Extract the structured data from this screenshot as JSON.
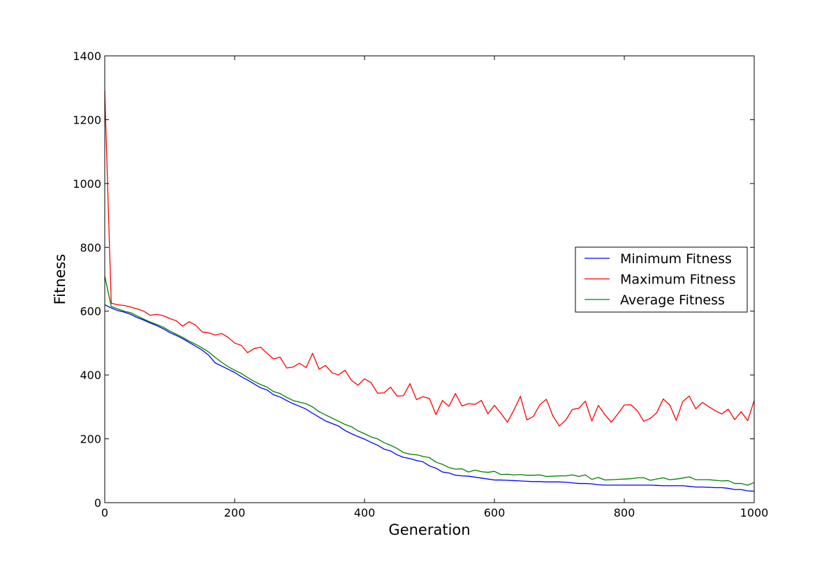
{
  "chart_data": {
    "type": "line",
    "title": "",
    "xlabel": "Generation",
    "ylabel": "Fitness",
    "xlim": [
      0,
      1000
    ],
    "ylim": [
      0,
      1400
    ],
    "xticks": [
      0,
      200,
      400,
      600,
      800,
      1000
    ],
    "yticks": [
      0,
      200,
      400,
      600,
      800,
      1000,
      1200,
      1400
    ],
    "grid": false,
    "legend_position": "center-right",
    "series": [
      {
        "name": "Minimum Fitness",
        "color": "#0000ff",
        "x": [
          0,
          10,
          20,
          30,
          40,
          50,
          60,
          70,
          80,
          90,
          100,
          110,
          120,
          130,
          140,
          150,
          160,
          170,
          180,
          190,
          200,
          210,
          220,
          230,
          240,
          250,
          260,
          270,
          280,
          290,
          300,
          310,
          320,
          330,
          340,
          350,
          360,
          370,
          380,
          390,
          400,
          410,
          420,
          430,
          440,
          450,
          460,
          470,
          480,
          490,
          500,
          510,
          520,
          530,
          540,
          550,
          560,
          570,
          580,
          590,
          600,
          610,
          620,
          630,
          640,
          650,
          660,
          670,
          680,
          690,
          700,
          710,
          720,
          730,
          740,
          750,
          760,
          770,
          780,
          790,
          800,
          810,
          820,
          830,
          840,
          850,
          860,
          870,
          880,
          890,
          900,
          910,
          920,
          930,
          940,
          950,
          960,
          970,
          980,
          990,
          1000
        ],
        "values": [
          620,
          610,
          602,
          597,
          590,
          580,
          572,
          563,
          555,
          545,
          533,
          524,
          514,
          502,
          490,
          478,
          462,
          438,
          428,
          418,
          408,
          395,
          384,
          372,
          360,
          353,
          338,
          331,
          320,
          310,
          302,
          293,
          280,
          268,
          256,
          248,
          240,
          226,
          216,
          207,
          199,
          189,
          180,
          168,
          162,
          150,
          142,
          138,
          132,
          128,
          115,
          108,
          96,
          93,
          86,
          84,
          83,
          80,
          77,
          74,
          71,
          71,
          70,
          69,
          68,
          67,
          66,
          66,
          65,
          65,
          65,
          64,
          62,
          60,
          60,
          59,
          56,
          55,
          55,
          55,
          55,
          55,
          55,
          55,
          55,
          54,
          53,
          53,
          53,
          53,
          51,
          49,
          49,
          48,
          47,
          47,
          45,
          41,
          41,
          37,
          36
        ]
      },
      {
        "name": "Maximum Fitness",
        "color": "#ff0000",
        "x": [
          0,
          10,
          20,
          30,
          40,
          50,
          60,
          70,
          80,
          90,
          100,
          110,
          120,
          130,
          140,
          150,
          160,
          170,
          180,
          190,
          200,
          210,
          220,
          230,
          240,
          250,
          260,
          270,
          280,
          290,
          300,
          310,
          320,
          330,
          340,
          350,
          360,
          370,
          380,
          390,
          400,
          410,
          420,
          430,
          440,
          450,
          460,
          470,
          480,
          490,
          500,
          510,
          520,
          530,
          540,
          550,
          560,
          570,
          580,
          590,
          600,
          610,
          620,
          630,
          640,
          650,
          660,
          670,
          680,
          690,
          700,
          710,
          720,
          730,
          740,
          750,
          760,
          770,
          780,
          790,
          800,
          810,
          820,
          830,
          840,
          850,
          860,
          870,
          880,
          890,
          900,
          910,
          920,
          930,
          940,
          950,
          960,
          970,
          980,
          990,
          1000
        ],
        "values": [
          1290,
          625,
          620,
          618,
          613,
          607,
          600,
          587,
          590,
          586,
          577,
          570,
          553,
          567,
          556,
          535,
          532,
          525,
          530,
          518,
          500,
          493,
          470,
          483,
          487,
          468,
          450,
          456,
          422,
          425,
          437,
          423,
          468,
          418,
          430,
          407,
          400,
          415,
          383,
          368,
          388,
          376,
          343,
          344,
          362,
          334,
          335,
          373,
          323,
          332,
          326,
          276,
          320,
          302,
          342,
          303,
          310,
          308,
          320,
          278,
          305,
          280,
          252,
          290,
          333,
          259,
          270,
          307,
          324,
          272,
          240,
          259,
          292,
          296,
          318,
          256,
          305,
          276,
          252,
          278,
          306,
          307,
          288,
          255,
          264,
          282,
          325,
          306,
          258,
          317,
          334,
          294,
          314,
          301,
          288,
          278,
          293,
          260,
          285,
          257,
          320
        ]
      },
      {
        "name": "Average Fitness",
        "color": "#008000",
        "x": [
          0,
          10,
          20,
          30,
          40,
          50,
          60,
          70,
          80,
          90,
          100,
          110,
          120,
          130,
          140,
          150,
          160,
          170,
          180,
          190,
          200,
          210,
          220,
          230,
          240,
          250,
          260,
          270,
          280,
          290,
          300,
          310,
          320,
          330,
          340,
          350,
          360,
          370,
          380,
          390,
          400,
          410,
          420,
          430,
          440,
          450,
          460,
          470,
          480,
          490,
          500,
          510,
          520,
          530,
          540,
          550,
          560,
          570,
          580,
          590,
          600,
          610,
          620,
          630,
          640,
          650,
          660,
          670,
          680,
          690,
          700,
          710,
          720,
          730,
          740,
          750,
          760,
          770,
          780,
          790,
          800,
          810,
          820,
          830,
          840,
          850,
          860,
          870,
          880,
          890,
          900,
          910,
          920,
          930,
          940,
          950,
          960,
          970,
          980,
          990,
          1000
        ],
        "values": [
          710,
          615,
          607,
          600,
          595,
          585,
          575,
          566,
          558,
          550,
          538,
          528,
          518,
          506,
          496,
          485,
          472,
          455,
          440,
          426,
          415,
          405,
          392,
          380,
          370,
          362,
          348,
          342,
          330,
          320,
          315,
          310,
          300,
          285,
          275,
          265,
          255,
          245,
          238,
          225,
          216,
          206,
          200,
          188,
          180,
          170,
          157,
          152,
          150,
          145,
          141,
          127,
          120,
          110,
          105,
          106,
          96,
          102,
          97,
          95,
          98,
          88,
          89,
          87,
          88,
          86,
          86,
          87,
          82,
          83,
          84,
          84,
          87,
          82,
          87,
          73,
          79,
          71,
          72,
          73,
          74,
          75,
          78,
          78,
          70,
          74,
          78,
          72,
          74,
          77,
          81,
          72,
          72,
          72,
          70,
          68,
          69,
          60,
          60,
          55,
          63
        ]
      }
    ]
  }
}
